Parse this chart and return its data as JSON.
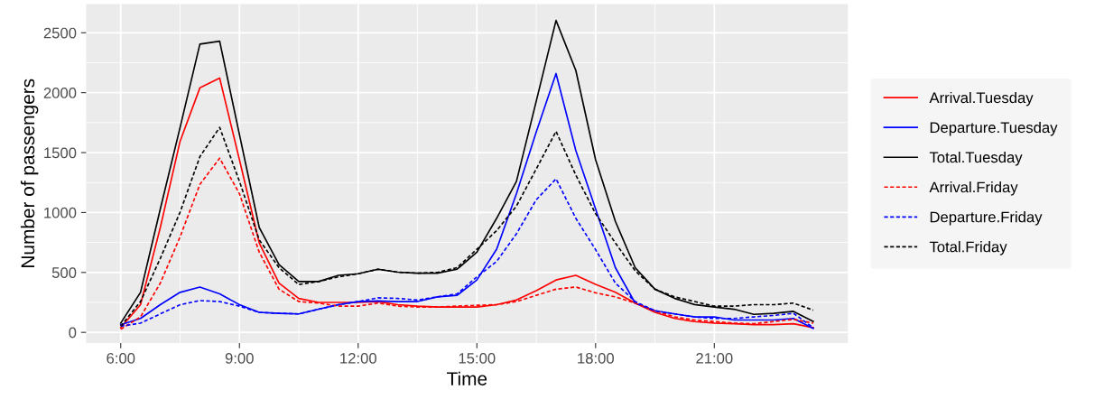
{
  "chart_data": {
    "type": "line",
    "xlabel": "Time",
    "ylabel": "Number of passengers",
    "x": [
      6,
      6.5,
      7,
      7.5,
      8,
      8.5,
      9,
      9.5,
      10,
      10.5,
      11,
      11.5,
      12,
      12.5,
      13,
      13.5,
      14,
      14.5,
      15,
      15.5,
      16,
      16.5,
      17,
      17.5,
      18,
      18.5,
      19,
      19.5,
      20,
      20.5,
      21,
      21.5,
      22,
      22.5,
      23,
      23.5
    ],
    "xlim": [
      5.125,
      24.375
    ],
    "xticks": [
      {
        "value": 6,
        "label": "6:00"
      },
      {
        "value": 9,
        "label": "9:00"
      },
      {
        "value": 12,
        "label": "12:00"
      },
      {
        "value": 15,
        "label": "15:00"
      },
      {
        "value": 18,
        "label": "18:00"
      },
      {
        "value": 21,
        "label": "21:00"
      }
    ],
    "ylim": [
      -90,
      2740
    ],
    "yticks": [
      0,
      500,
      1000,
      1500,
      2000,
      2500
    ],
    "grid": true,
    "legend": "right",
    "marker": "none",
    "series": [
      {
        "name": "Arrival.Tuesday",
        "color": "#ff0000",
        "line_style": "solid",
        "values": [
          39,
          231,
          875,
          1595,
          2040,
          2122,
          1440,
          746,
          411,
          283,
          250,
          250,
          250,
          257,
          231,
          219,
          211,
          211,
          211,
          231,
          270,
          347,
          437,
          476,
          400,
          334,
          244,
          167,
          116,
          90,
          77,
          72,
          64,
          64,
          72,
          39
        ]
      },
      {
        "name": "Departure.Tuesday",
        "color": "#0000ff",
        "line_style": "solid",
        "values": [
          64,
          116,
          231,
          334,
          378,
          321,
          231,
          167,
          159,
          154,
          193,
          231,
          257,
          262,
          257,
          257,
          296,
          309,
          437,
          694,
          1157,
          1672,
          2160,
          1517,
          1030,
          540,
          244,
          180,
          154,
          129,
          129,
          103,
          103,
          103,
          116,
          32
        ]
      },
      {
        "name": "Total.Tuesday",
        "color": "#000000",
        "line_style": "solid",
        "values": [
          77,
          334,
          1030,
          1710,
          2405,
          2430,
          1650,
          875,
          566,
          424,
          424,
          476,
          489,
          527,
          502,
          494,
          494,
          527,
          669,
          952,
          1260,
          1929,
          2603,
          2186,
          1440,
          926,
          540,
          360,
          283,
          232,
          211,
          193,
          150,
          158,
          175,
          90
        ]
      },
      {
        "name": "Arrival.Friday",
        "color": "#ff0000",
        "line_style": "dashed",
        "values": [
          26,
          129,
          411,
          797,
          1235,
          1453,
          1157,
          669,
          360,
          257,
          244,
          219,
          219,
          244,
          219,
          211,
          211,
          219,
          226,
          231,
          257,
          309,
          360,
          378,
          330,
          296,
          244,
          180,
          129,
          103,
          90,
          77,
          72,
          90,
          108,
          77
        ]
      },
      {
        "name": "Departure.Friday",
        "color": "#0000ff",
        "line_style": "dashed",
        "values": [
          51,
          77,
          154,
          231,
          265,
          257,
          219,
          167,
          159,
          154,
          193,
          231,
          257,
          288,
          283,
          270,
          296,
          321,
          463,
          592,
          823,
          1106,
          1281,
          952,
          690,
          411,
          257,
          180,
          154,
          129,
          116,
          116,
          129,
          141,
          159,
          39
        ]
      },
      {
        "name": "Total.Friday",
        "color": "#000000",
        "line_style": "dashed",
        "values": [
          51,
          257,
          617,
          1003,
          1466,
          1710,
          1260,
          772,
          540,
          399,
          424,
          463,
          489,
          527,
          502,
          494,
          500,
          540,
          694,
          849,
          1054,
          1363,
          1677,
          1312,
          990,
          746,
          514,
          360,
          296,
          257,
          219,
          219,
          231,
          231,
          244,
          185
        ]
      }
    ]
  }
}
